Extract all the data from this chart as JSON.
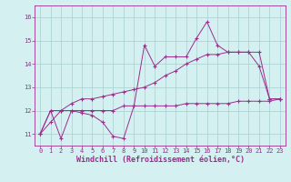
{
  "x": [
    0,
    1,
    2,
    3,
    4,
    5,
    6,
    7,
    8,
    9,
    10,
    11,
    12,
    13,
    14,
    15,
    16,
    17,
    18,
    19,
    20,
    21,
    22,
    23
  ],
  "line1": [
    11.0,
    12.0,
    10.8,
    12.0,
    11.9,
    11.8,
    11.5,
    10.9,
    10.8,
    12.2,
    14.8,
    13.9,
    14.3,
    14.3,
    14.3,
    15.1,
    15.8,
    14.8,
    14.5,
    14.5,
    14.5,
    13.9,
    12.5,
    12.5
  ],
  "line2": [
    11.0,
    12.0,
    12.0,
    12.0,
    12.0,
    12.0,
    12.0,
    12.0,
    12.2,
    12.2,
    12.2,
    12.2,
    12.2,
    12.2,
    12.3,
    12.3,
    12.3,
    12.3,
    12.3,
    12.4,
    12.4,
    12.4,
    12.4,
    12.5
  ],
  "line3": [
    11.0,
    11.5,
    12.0,
    12.3,
    12.5,
    12.5,
    12.6,
    12.7,
    12.8,
    12.9,
    13.0,
    13.2,
    13.5,
    13.7,
    14.0,
    14.2,
    14.4,
    14.4,
    14.5,
    14.5,
    14.5,
    14.5,
    12.5,
    12.5
  ],
  "line_color": "#9b2d8e",
  "bg_color": "#d4f0f0",
  "grid_color": "#a8cece",
  "xlabel": "Windchill (Refroidissement éolien,°C)",
  "ylim": [
    10.5,
    16.5
  ],
  "xlim": [
    -0.5,
    23.5
  ],
  "yticks": [
    11,
    12,
    13,
    14,
    15,
    16
  ],
  "xticks": [
    0,
    1,
    2,
    3,
    4,
    5,
    6,
    7,
    8,
    9,
    10,
    11,
    12,
    13,
    14,
    15,
    16,
    17,
    18,
    19,
    20,
    21,
    22,
    23
  ],
  "tick_fontsize": 5.0,
  "xlabel_fontsize": 6.0
}
